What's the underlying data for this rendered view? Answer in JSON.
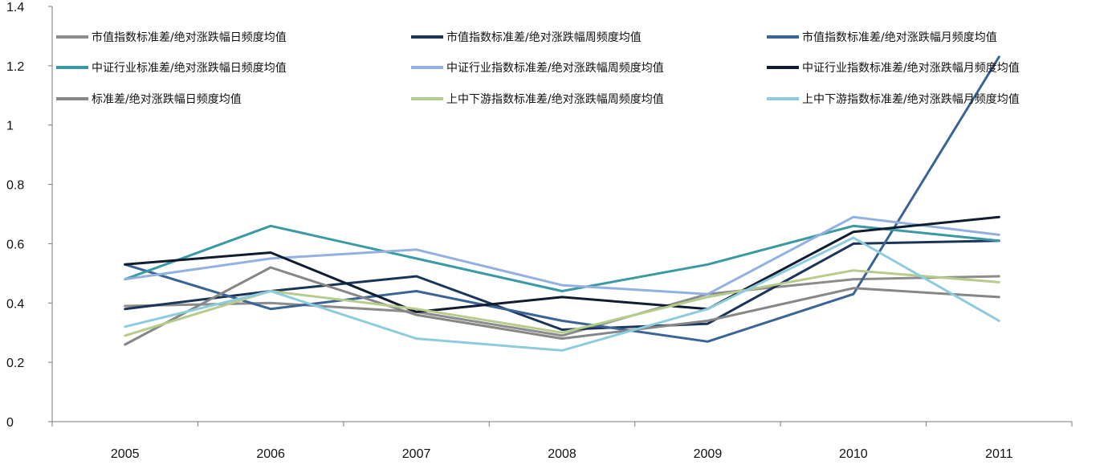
{
  "chart_data": {
    "type": "line",
    "title": "",
    "xlabel": "",
    "ylabel": "",
    "x": [
      "2005",
      "2006",
      "2007",
      "2008",
      "2009",
      "2010",
      "2011"
    ],
    "ylim": [
      0,
      1.4
    ],
    "yticks": [
      0,
      0.2,
      0.4,
      0.6,
      0.8,
      1,
      1.2,
      1.4
    ],
    "ytick_labels": [
      "0",
      "0.2",
      "0.4",
      "0.6",
      "0.8",
      "1",
      "1.2",
      "1.4"
    ],
    "grid": false,
    "legend_position": "top",
    "series": [
      {
        "name": "市值指数标准差/绝对涨跌幅日频度均值",
        "color": "#8c8c8c",
        "values": [
          0.39,
          0.4,
          0.37,
          0.29,
          0.43,
          0.48,
          0.49
        ]
      },
      {
        "name": "市值指数标准差/绝对涨跌幅周频度均值",
        "color": "#1b3558",
        "values": [
          0.38,
          0.44,
          0.49,
          0.31,
          0.33,
          0.6,
          0.61
        ]
      },
      {
        "name": "市值指数标准差/绝对涨跌幅月频度均值",
        "color": "#3a6496",
        "values": [
          0.53,
          0.38,
          0.44,
          0.34,
          0.27,
          0.43,
          1.23
        ]
      },
      {
        "name": "中证行业标准差/绝对涨跌幅日频度均值",
        "color": "#3a9aa4",
        "values": [
          0.48,
          0.66,
          0.55,
          0.44,
          0.53,
          0.66,
          0.61
        ]
      },
      {
        "name": "中证行业指数标准差/绝对涨跌幅周频度均值",
        "color": "#92b0e0",
        "values": [
          0.48,
          0.55,
          0.58,
          0.46,
          0.43,
          0.69,
          0.63
        ]
      },
      {
        "name": "中证行业指数标准差/绝对涨跌幅月频度均值",
        "color": "#101c30",
        "values": [
          0.53,
          0.57,
          0.37,
          0.42,
          0.38,
          0.64,
          0.69
        ]
      },
      {
        "name": "标准差/绝对涨跌幅日频度均值",
        "color": "#868686",
        "values": [
          0.26,
          0.52,
          0.36,
          0.28,
          0.34,
          0.45,
          0.42
        ]
      },
      {
        "name": "上中下游指数标准差/绝对涨跌幅周频度均值",
        "color": "#b6cc8c",
        "values": [
          0.29,
          0.44,
          0.38,
          0.3,
          0.42,
          0.51,
          0.47
        ]
      },
      {
        "name": "上中下游指数标准差/绝对涨跌幅月频度均值",
        "color": "#8ecbdc",
        "values": [
          0.32,
          0.44,
          0.28,
          0.24,
          0.38,
          0.62,
          0.34
        ]
      }
    ]
  }
}
